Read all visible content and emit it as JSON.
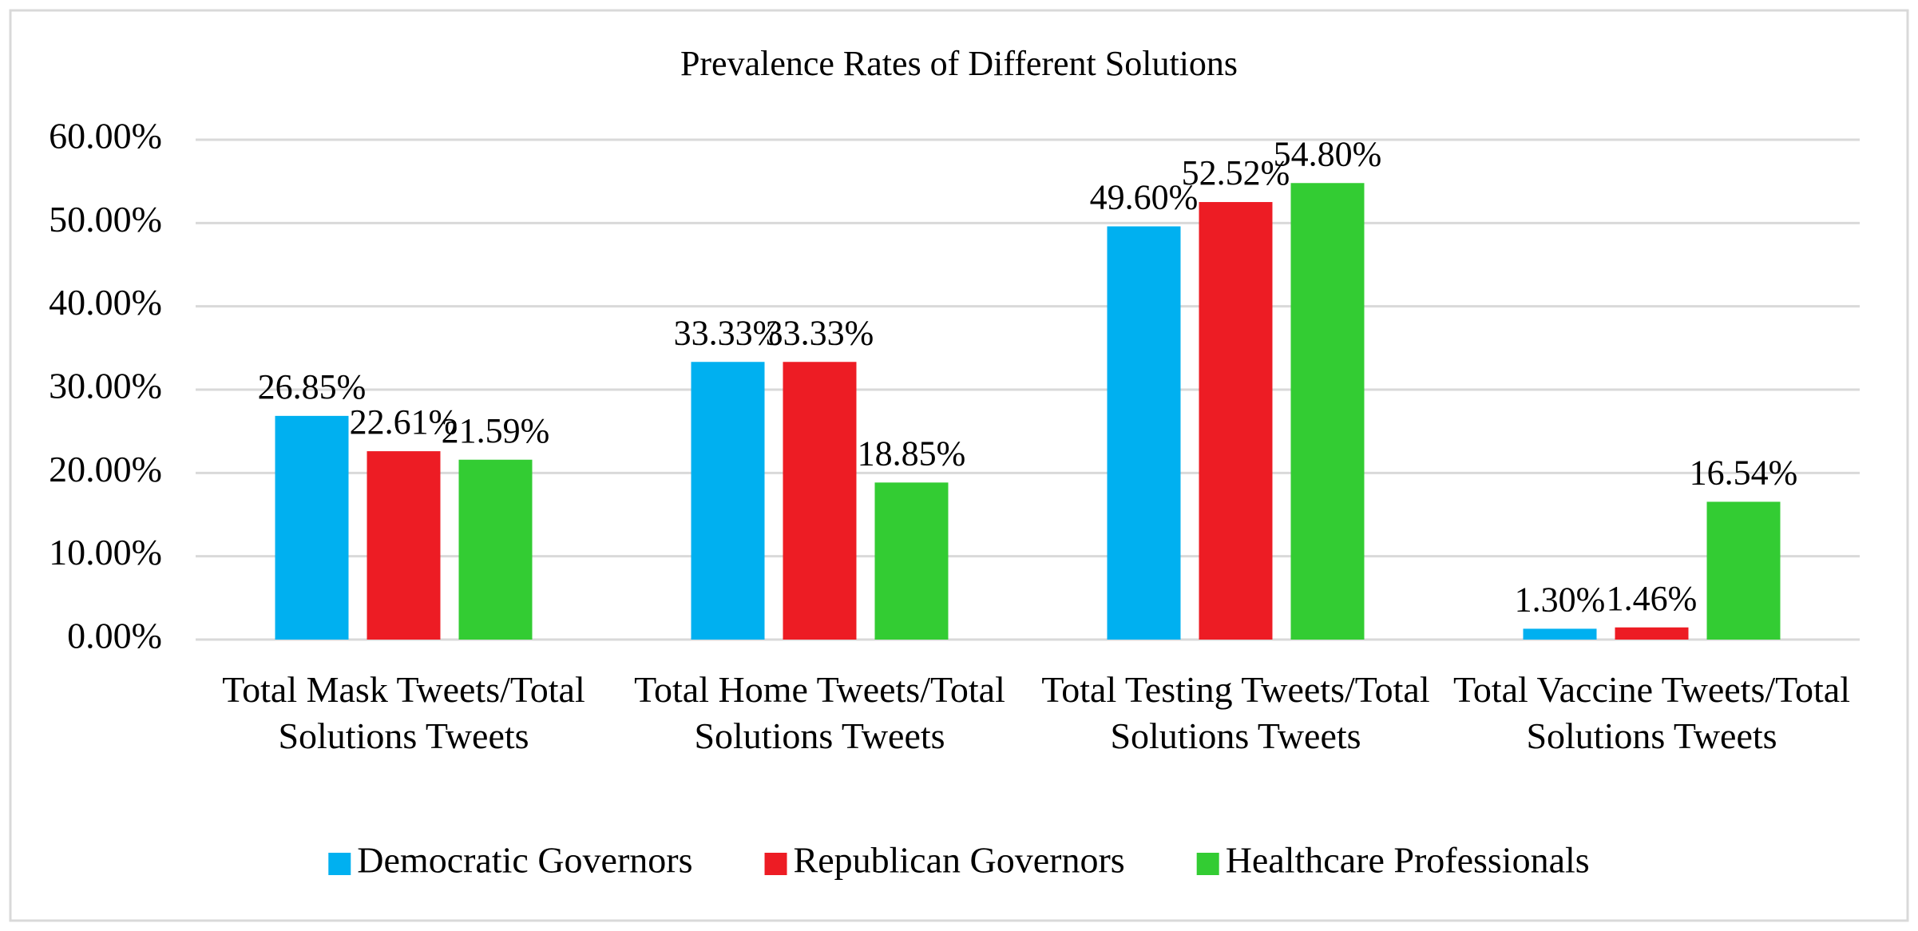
{
  "chart_data": {
    "type": "bar",
    "title": "Prevalence Rates of Different Solutions",
    "categories": [
      "Total Mask Tweets/Total Solutions Tweets",
      "Total Home Tweets/Total Solutions Tweets",
      "Total Testing Tweets/Total Solutions Tweets",
      "Total Vaccine Tweets/Total Solutions Tweets"
    ],
    "series": [
      {
        "name": "Democratic Governors",
        "color": "#00b0f0",
        "values": [
          26.85,
          33.33,
          49.6,
          1.3
        ],
        "value_labels": [
          "26.85%",
          "33.33%",
          "49.60%",
          "1.30%"
        ]
      },
      {
        "name": "Republican Governors",
        "color": "#ed1c24",
        "values": [
          22.61,
          33.33,
          52.52,
          1.46
        ],
        "value_labels": [
          "22.61%",
          "33.33%",
          "52.52%",
          "1.46%"
        ]
      },
      {
        "name": "Healthcare Professionals",
        "color": "#33cc33",
        "values": [
          21.59,
          18.85,
          54.8,
          16.54
        ],
        "value_labels": [
          "21.59%",
          "18.85%",
          "54.80%",
          "16.54%"
        ]
      }
    ],
    "ylim": [
      0,
      60
    ],
    "yticks": [
      {
        "value": 0,
        "label": "0.00%"
      },
      {
        "value": 10,
        "label": "10.00%"
      },
      {
        "value": 20,
        "label": "20.00%"
      },
      {
        "value": 30,
        "label": "30.00%"
      },
      {
        "value": 40,
        "label": "40.00%"
      },
      {
        "value": 50,
        "label": "50.00%"
      },
      {
        "value": 60,
        "label": "60.00%"
      }
    ],
    "grid": true,
    "legend": "bottom"
  }
}
